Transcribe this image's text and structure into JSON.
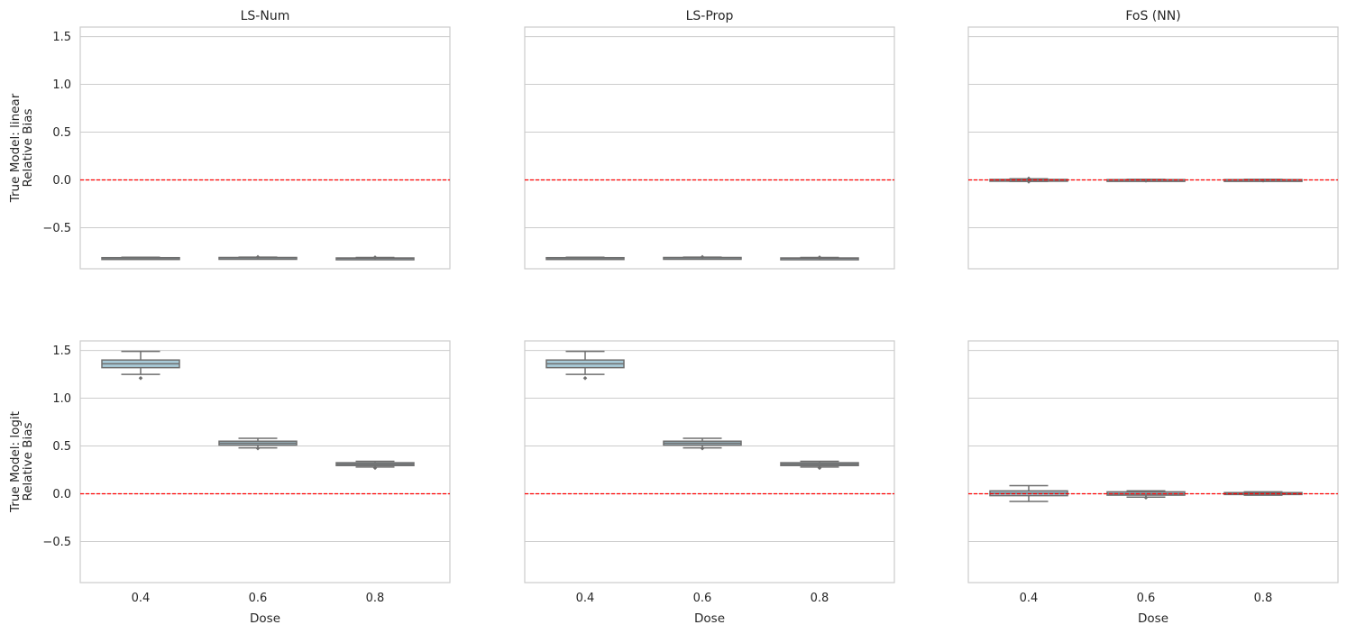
{
  "colors": {
    "grid": "#cccccc",
    "frame": "#cccccc",
    "refline": "#ff0000",
    "box_fill": "#a8cad8",
    "box_edge": "#6e6e6e",
    "text": "#262626"
  },
  "chart_data": [
    {
      "type": "box",
      "title": "LS-Num",
      "ylabel": [
        "True Model: linear",
        "Relative Bias"
      ],
      "xlabel": "",
      "categories": [
        "0.4",
        "0.6",
        "0.8"
      ],
      "yticks": [
        "−0.5",
        "0.0",
        "0.5",
        "1.0",
        "1.5"
      ],
      "ylim": [
        -0.93,
        1.6
      ],
      "grid": true,
      "reference_line": 0.0,
      "boxes": [
        {
          "x": "0.4",
          "whislo": -0.825,
          "q1": -0.822,
          "med": -0.818,
          "q3": -0.814,
          "whishi": -0.81,
          "fliers": []
        },
        {
          "x": "0.6",
          "whislo": -0.82,
          "q1": -0.818,
          "med": -0.815,
          "q3": -0.812,
          "whishi": -0.808,
          "fliers": [
            -0.807
          ]
        },
        {
          "x": "0.8",
          "whislo": -0.825,
          "q1": -0.823,
          "med": -0.82,
          "q3": -0.817,
          "whishi": -0.812,
          "fliers": [
            -0.811
          ]
        }
      ]
    },
    {
      "type": "box",
      "title": "LS-Prop",
      "ylabel": [],
      "xlabel": "",
      "categories": [
        "0.4",
        "0.6",
        "0.8"
      ],
      "yticks": [],
      "ylim": [
        -0.93,
        1.6
      ],
      "grid": true,
      "reference_line": 0.0,
      "boxes": [
        {
          "x": "0.4",
          "whislo": -0.825,
          "q1": -0.822,
          "med": -0.818,
          "q3": -0.814,
          "whishi": -0.81,
          "fliers": []
        },
        {
          "x": "0.6",
          "whislo": -0.82,
          "q1": -0.818,
          "med": -0.815,
          "q3": -0.812,
          "whishi": -0.808,
          "fliers": [
            -0.807
          ]
        },
        {
          "x": "0.8",
          "whislo": -0.825,
          "q1": -0.823,
          "med": -0.82,
          "q3": -0.817,
          "whishi": -0.812,
          "fliers": [
            -0.811
          ]
        }
      ]
    },
    {
      "type": "box",
      "title": "FoS (NN)",
      "ylabel": [],
      "xlabel": "",
      "categories": [
        "0.4",
        "0.6",
        "0.8"
      ],
      "yticks": [],
      "ylim": [
        -0.93,
        1.6
      ],
      "grid": true,
      "reference_line": 0.0,
      "boxes": [
        {
          "x": "0.4",
          "whislo": -0.015,
          "q1": -0.005,
          "med": 0.0,
          "q3": 0.005,
          "whishi": 0.012,
          "fliers": [
            0.015,
            -0.018
          ]
        },
        {
          "x": "0.6",
          "whislo": -0.006,
          "q1": -0.003,
          "med": 0.0,
          "q3": 0.003,
          "whishi": 0.006,
          "fliers": [
            -0.008
          ]
        },
        {
          "x": "0.8",
          "whislo": -0.006,
          "q1": -0.003,
          "med": 0.0,
          "q3": 0.003,
          "whishi": 0.006,
          "fliers": [
            -0.007
          ]
        }
      ]
    },
    {
      "type": "box",
      "title": "",
      "ylabel": [
        "True Model: logit",
        "Relative Bias"
      ],
      "xlabel": "Dose",
      "categories": [
        "0.4",
        "0.6",
        "0.8"
      ],
      "yticks": [
        "−0.5",
        "0.0",
        "0.5",
        "1.0",
        "1.5"
      ],
      "ylim": [
        -0.93,
        1.6
      ],
      "grid": true,
      "reference_line": 0.0,
      "boxes": [
        {
          "x": "0.4",
          "whislo": 1.25,
          "q1": 1.32,
          "med": 1.36,
          "q3": 1.4,
          "whishi": 1.49,
          "fliers": [
            1.21
          ]
        },
        {
          "x": "0.6",
          "whislo": 0.48,
          "q1": 0.51,
          "med": 0.53,
          "q3": 0.55,
          "whishi": 0.58,
          "fliers": [
            0.475
          ]
        },
        {
          "x": "0.8",
          "whislo": 0.28,
          "q1": 0.295,
          "med": 0.31,
          "q3": 0.325,
          "whishi": 0.34,
          "fliers": [
            0.27
          ]
        }
      ]
    },
    {
      "type": "box",
      "title": "",
      "ylabel": [],
      "xlabel": "Dose",
      "categories": [
        "0.4",
        "0.6",
        "0.8"
      ],
      "yticks": [],
      "ylim": [
        -0.93,
        1.6
      ],
      "grid": true,
      "reference_line": 0.0,
      "boxes": [
        {
          "x": "0.4",
          "whislo": 1.25,
          "q1": 1.32,
          "med": 1.36,
          "q3": 1.4,
          "whishi": 1.49,
          "fliers": [
            1.21
          ]
        },
        {
          "x": "0.6",
          "whislo": 0.48,
          "q1": 0.51,
          "med": 0.53,
          "q3": 0.55,
          "whishi": 0.58,
          "fliers": [
            0.475
          ]
        },
        {
          "x": "0.8",
          "whislo": 0.28,
          "q1": 0.295,
          "med": 0.31,
          "q3": 0.325,
          "whishi": 0.34,
          "fliers": [
            0.27
          ]
        }
      ]
    },
    {
      "type": "box",
      "title": "",
      "ylabel": [],
      "xlabel": "Dose",
      "categories": [
        "0.4",
        "0.6",
        "0.8"
      ],
      "yticks": [],
      "ylim": [
        -0.93,
        1.6
      ],
      "grid": true,
      "reference_line": 0.0,
      "boxes": [
        {
          "x": "0.4",
          "whislo": -0.08,
          "q1": -0.02,
          "med": 0.005,
          "q3": 0.03,
          "whishi": 0.085,
          "fliers": []
        },
        {
          "x": "0.6",
          "whislo": -0.035,
          "q1": -0.015,
          "med": 0.0,
          "q3": 0.02,
          "whishi": 0.03,
          "fliers": [
            -0.04
          ]
        },
        {
          "x": "0.8",
          "whislo": -0.015,
          "q1": -0.008,
          "med": 0.0,
          "q3": 0.012,
          "whishi": 0.02,
          "fliers": []
        }
      ]
    }
  ]
}
